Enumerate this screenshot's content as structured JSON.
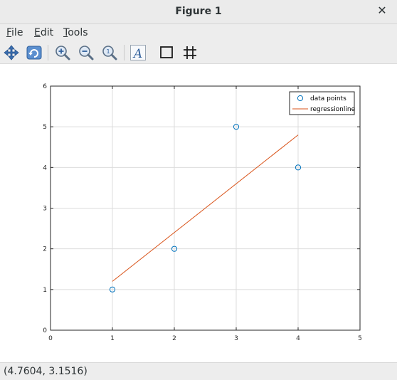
{
  "window": {
    "title": "Figure 1",
    "close_glyph": "✕"
  },
  "menu": [
    {
      "label": "File",
      "mnemonic": "F",
      "rest": "ile"
    },
    {
      "label": "Edit",
      "mnemonic": "E",
      "rest": "dit"
    },
    {
      "label": "Tools",
      "mnemonic": "T",
      "rest": "ools"
    }
  ],
  "toolbar": [
    {
      "icon": "pan-icon",
      "name": "pan-button"
    },
    {
      "icon": "rotate-icon",
      "name": "rotate-button"
    },
    {
      "icon": "zoom-in-icon",
      "name": "zoom-in-button"
    },
    {
      "icon": "zoom-out-icon",
      "name": "zoom-out-button"
    },
    {
      "icon": "zoom-reset-icon",
      "name": "zoom-reset-button"
    },
    {
      "icon": "text-icon",
      "name": "insert-text-button",
      "glyph": "A"
    },
    {
      "icon": "axes-box-icon",
      "name": "toggle-axes-box-button"
    },
    {
      "icon": "grid-icon",
      "name": "toggle-grid-button"
    }
  ],
  "status": {
    "coords": "(4.7604, 3.1516)"
  },
  "colors": {
    "marker": "#0072bd",
    "line": "#d95319",
    "grid": "#dcdcdc"
  },
  "chart_data": {
    "type": "scatter",
    "title": "",
    "xlabel": "",
    "ylabel": "",
    "xlim": [
      0,
      5
    ],
    "ylim": [
      0,
      6
    ],
    "xticks": [
      0,
      1,
      2,
      3,
      4,
      5
    ],
    "yticks": [
      0,
      1,
      2,
      3,
      4,
      5,
      6
    ],
    "grid": true,
    "legend_position": "top-right",
    "series": [
      {
        "name": "data points",
        "type": "scatter",
        "marker": "circle",
        "color": "#0072bd",
        "x": [
          1,
          2,
          3,
          4
        ],
        "y": [
          1,
          2,
          5,
          4
        ]
      },
      {
        "name": "regressionline",
        "type": "line",
        "color": "#d95319",
        "x": [
          1,
          4
        ],
        "y": [
          1.2,
          4.8
        ]
      }
    ]
  }
}
